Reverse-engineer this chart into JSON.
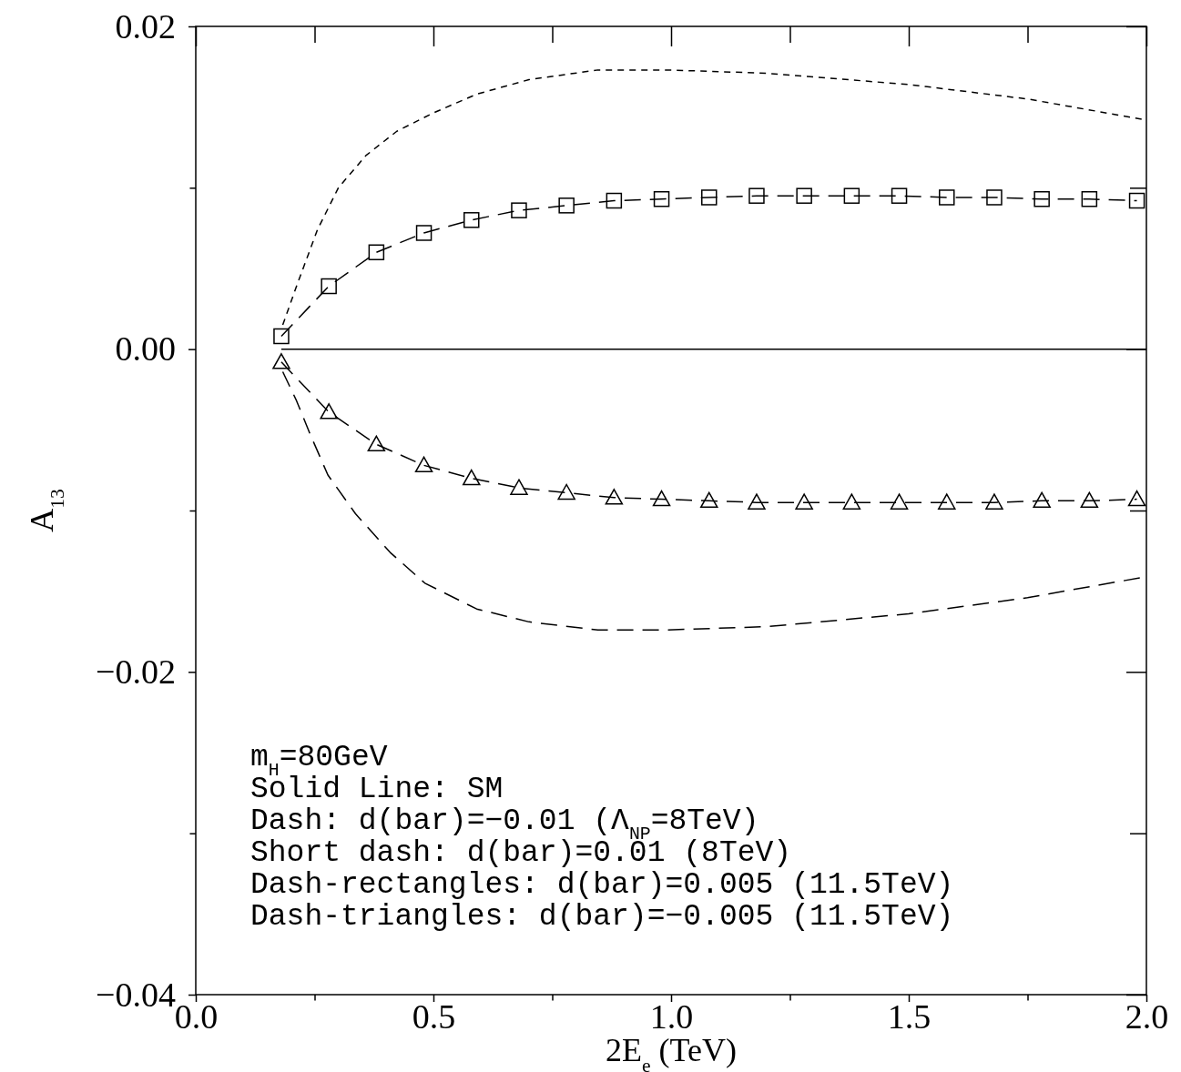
{
  "chart_data": {
    "type": "line",
    "xlabel": "2E$_{e}$ (TeV)",
    "ylabel": "A$_{13}$",
    "xlim": [
      0,
      2.0
    ],
    "ylim": [
      -0.04,
      0.02
    ],
    "xticks": [
      {
        "value": 0,
        "label": "0.0"
      },
      {
        "value": 0.25,
        "label": null
      },
      {
        "value": 0.5,
        "label": "0.5"
      },
      {
        "value": 0.75,
        "label": null
      },
      {
        "value": 1.0,
        "label": "1.0"
      },
      {
        "value": 1.25,
        "label": null
      },
      {
        "value": 1.5,
        "label": "1.5"
      },
      {
        "value": 1.75,
        "label": null
      },
      {
        "value": 2.0,
        "label": "2.0"
      }
    ],
    "yticks": [
      {
        "value": -0.04,
        "label": "−0.04"
      },
      {
        "value": -0.03,
        "label": null
      },
      {
        "value": -0.02,
        "label": "−0.02"
      },
      {
        "value": -0.01,
        "label": null
      },
      {
        "value": 0,
        "label": "0.00"
      },
      {
        "value": 0.01,
        "label": null
      },
      {
        "value": 0.02,
        "label": "0.02"
      }
    ],
    "grid": false,
    "series": [
      {
        "color": "#000000",
        "line_style": "solid",
        "marker": "none",
        "x": [
          0.18,
          2.0
        ],
        "values": [
          0,
          0
        ]
      },
      {
        "color": "#000000",
        "line_style": "dashed",
        "marker": "none",
        "x": [
          0.183,
          0.212,
          0.241,
          0.278,
          0.336,
          0.409,
          0.482,
          0.591,
          0.701,
          0.846,
          0.992,
          1.2,
          1.5,
          1.75,
          2.0
        ],
        "values": [
          -0.0014,
          -0.0032,
          -0.0053,
          -0.0078,
          -0.0102,
          -0.0126,
          -0.0145,
          -0.0161,
          -0.0169,
          -0.0174,
          -0.0174,
          -0.0172,
          -0.0164,
          -0.0154,
          -0.0141
        ]
      },
      {
        "color": "#000000",
        "line_style": "dotted",
        "marker": "none",
        "x": [
          0.183,
          0.212,
          0.256,
          0.3,
          0.358,
          0.423,
          0.497,
          0.591,
          0.701,
          0.846,
          0.992,
          1.2,
          1.5,
          1.75,
          2.0
        ],
        "values": [
          0.0015,
          0.0039,
          0.0074,
          0.01,
          0.012,
          0.0135,
          0.0146,
          0.0158,
          0.0167,
          0.0173,
          0.0173,
          0.0171,
          0.0164,
          0.0155,
          0.0142
        ]
      },
      {
        "color": "#000000",
        "line_style": "dashed",
        "marker": "square",
        "x": [
          0.18,
          0.28,
          0.38,
          0.48,
          0.58,
          0.68,
          0.78,
          0.88,
          0.98,
          1.08,
          1.18,
          1.28,
          1.38,
          1.48,
          1.58,
          1.68,
          1.78,
          1.88,
          1.98
        ],
        "values": [
          0.0008,
          0.0039,
          0.006,
          0.0072,
          0.008,
          0.0086,
          0.0089,
          0.0092,
          0.0093,
          0.0094,
          0.0095,
          0.0095,
          0.0095,
          0.0095,
          0.0094,
          0.0094,
          0.0093,
          0.0093,
          0.0092
        ]
      },
      {
        "color": "#000000",
        "line_style": "dashed",
        "marker": "triangle",
        "x": [
          0.18,
          0.28,
          0.38,
          0.48,
          0.58,
          0.68,
          0.78,
          0.88,
          0.98,
          1.08,
          1.18,
          1.28,
          1.38,
          1.48,
          1.58,
          1.68,
          1.78,
          1.88,
          1.98
        ],
        "values": [
          -0.0008,
          -0.0039,
          -0.0059,
          -0.0072,
          -0.008,
          -0.0086,
          -0.0089,
          -0.0092,
          -0.0093,
          -0.0094,
          -0.0095,
          -0.0095,
          -0.0095,
          -0.0095,
          -0.0095,
          -0.0095,
          -0.0094,
          -0.0094,
          -0.0093
        ]
      }
    ],
    "annotations": [
      "m$_{H}$=80GeV",
      "Solid Line: SM",
      "Dash: d(bar)=−0.01 (Λ$_{NP}$=8TeV)",
      "Short dash: d(bar)=0.01 (8TeV)",
      "Dash-rectangles: d(bar)=0.005 (11.5TeV)",
      "Dash-triangles: d(bar)=−0.005 (11.5TeV)"
    ]
  }
}
